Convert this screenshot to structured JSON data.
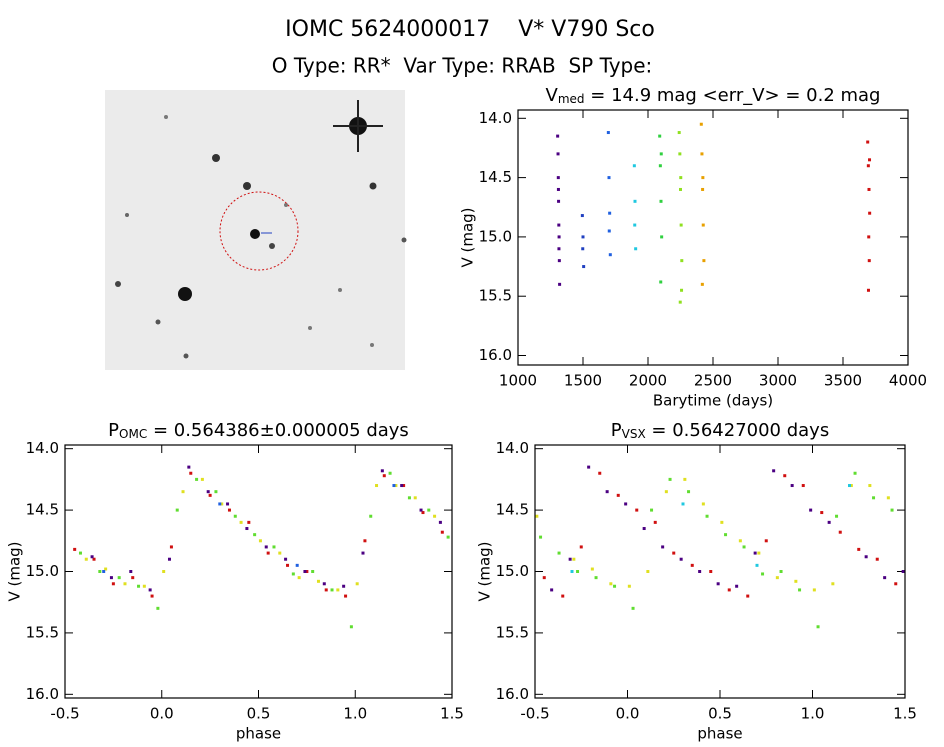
{
  "header": {
    "line1": "IOMC 5624000017    V* V790 Sco",
    "line2": "O Type: RR*  Var Type: RRAB  SP Type:"
  },
  "chart_data": [
    {
      "type": "scatter",
      "title": [
        "V",
        "med",
        " = 14.9 mag <err_V> = 0.2 mag"
      ],
      "x_label": "Barytime (days)",
      "y_label": "V (mag)",
      "xlim": [
        1000,
        4000
      ],
      "xticks": [
        1000,
        1500,
        2000,
        2500,
        3000,
        3500,
        4000
      ],
      "ylim": [
        13.93,
        16.08
      ],
      "y_inverted": true,
      "yticks": [
        {
          "value": 14,
          "label": "14.0"
        },
        14.5,
        {
          "value": 15,
          "label": "15.0"
        },
        15.5,
        {
          "value": 16,
          "label": "16.0"
        }
      ],
      "series": [
        {
          "color": "#4b0082",
          "x": [
            1305,
            1308,
            1310,
            1312,
            1314,
            1316,
            1318,
            1320,
            1311,
            1315
          ],
          "values": [
            14.15,
            14.3,
            14.5,
            14.7,
            14.9,
            15.0,
            15.2,
            15.4,
            14.6,
            15.1
          ]
        },
        {
          "color": "#2040c0",
          "x": [
            1495,
            1500,
            1505,
            1498
          ],
          "values": [
            14.82,
            15.0,
            15.25,
            15.1
          ]
        },
        {
          "color": "#2060e0",
          "x": [
            1695,
            1700,
            1705,
            1710,
            1702
          ],
          "values": [
            14.12,
            14.5,
            14.8,
            15.15,
            14.95
          ]
        },
        {
          "color": "#20c8e0",
          "x": [
            1895,
            1900,
            1905,
            1898
          ],
          "values": [
            14.4,
            14.7,
            15.1,
            14.9
          ]
        },
        {
          "color": "#30d040",
          "x": [
            2090,
            2095,
            2100,
            2105,
            2098,
            2102
          ],
          "values": [
            14.15,
            14.4,
            14.7,
            15.0,
            15.38,
            14.3
          ]
        },
        {
          "color": "#90e020",
          "x": [
            2240,
            2245,
            2250,
            2255,
            2260,
            2248,
            2252,
            2258
          ],
          "values": [
            14.12,
            14.3,
            14.6,
            14.9,
            15.2,
            15.55,
            14.5,
            15.45
          ]
        },
        {
          "color": "#e8a000",
          "x": [
            2410,
            2415,
            2420,
            2425,
            2430,
            2418,
            2422
          ],
          "values": [
            14.05,
            14.3,
            14.6,
            14.9,
            15.2,
            15.4,
            14.5
          ]
        },
        {
          "color": "#d01010",
          "x": [
            3690,
            3695,
            3700,
            3705,
            3698,
            3702,
            3696,
            3704
          ],
          "values": [
            14.2,
            14.4,
            14.6,
            14.8,
            15.0,
            15.2,
            15.45,
            14.35
          ]
        }
      ]
    },
    {
      "type": "scatter",
      "title": [
        "P",
        "OMC",
        " = 0.564386±0.000005 days"
      ],
      "x_label": "phase",
      "y_label": "V (mag)",
      "xlim": [
        -0.5,
        1.5
      ],
      "xticks": [
        -0.5,
        {
          "value": 0,
          "label": "0.0"
        },
        0.5,
        {
          "value": 1,
          "label": "1.0"
        },
        1.5
      ],
      "ylim": [
        13.97,
        16.03
      ],
      "y_inverted": true,
      "yticks": [
        {
          "value": 14,
          "label": "14.0"
        },
        14.5,
        {
          "value": 15,
          "label": "15.0"
        },
        15.5,
        {
          "value": 16,
          "label": "16.0"
        }
      ],
      "series": [
        {
          "color": "#d01010",
          "x": [
            -0.45,
            -0.35,
            -0.25,
            -0.15,
            -0.05,
            0.05,
            0.15,
            0.25,
            0.35,
            0.45,
            0.55,
            0.65,
            0.75,
            0.85,
            0.95,
            1.05,
            1.15,
            1.25,
            1.35,
            1.45
          ],
          "values": [
            14.82,
            14.9,
            15.1,
            15.05,
            15.2,
            14.8,
            14.2,
            14.38,
            14.5,
            14.6,
            14.85,
            14.95,
            15.0,
            15.15,
            15.2,
            14.75,
            14.22,
            14.3,
            14.52,
            14.68
          ]
        },
        {
          "color": "#60dd30",
          "x": [
            -0.42,
            -0.32,
            -0.22,
            -0.12,
            -0.02,
            0.08,
            0.18,
            0.28,
            0.38,
            0.48,
            0.58,
            0.68,
            0.78,
            0.88,
            0.98,
            1.08,
            1.18,
            1.28,
            1.38,
            1.48
          ],
          "values": [
            14.85,
            15.0,
            15.05,
            15.12,
            15.3,
            14.5,
            14.25,
            14.35,
            14.55,
            14.7,
            14.8,
            15.02,
            15.0,
            15.15,
            15.45,
            14.55,
            14.2,
            14.4,
            14.5,
            14.72
          ]
        },
        {
          "color": "#e0e020",
          "x": [
            -0.39,
            -0.29,
            -0.19,
            -0.09,
            0.01,
            0.11,
            0.21,
            0.31,
            0.41,
            0.51,
            0.61,
            0.71,
            0.81,
            0.91,
            1.01,
            1.11,
            1.21,
            1.31,
            1.41
          ],
          "values": [
            14.9,
            14.98,
            15.1,
            15.12,
            15.0,
            14.35,
            14.25,
            14.45,
            14.6,
            14.75,
            14.85,
            15.05,
            15.08,
            15.15,
            15.1,
            14.3,
            14.3,
            14.4,
            14.55
          ]
        },
        {
          "color": "#4b0082",
          "x": [
            -0.36,
            -0.26,
            -0.16,
            -0.06,
            0.04,
            0.14,
            0.24,
            0.34,
            0.44,
            0.54,
            0.64,
            0.74,
            0.84,
            0.94,
            1.04,
            1.14,
            1.24,
            1.34,
            1.44
          ],
          "values": [
            14.88,
            15.05,
            15.0,
            15.15,
            14.9,
            14.15,
            14.35,
            14.45,
            14.65,
            14.8,
            14.9,
            15.0,
            15.1,
            15.12,
            14.85,
            14.18,
            14.3,
            14.5,
            14.6
          ]
        },
        {
          "color": "#2060e0",
          "x": [
            -0.3,
            0.3,
            0.7,
            1.2
          ],
          "values": [
            15.0,
            14.45,
            14.95,
            14.3
          ]
        }
      ]
    },
    {
      "type": "scatter",
      "title": [
        "P",
        "VSX",
        " = 0.56427000 days"
      ],
      "x_label": "phase",
      "y_label": "V (mag)",
      "xlim": [
        -0.5,
        1.5
      ],
      "xticks": [
        -0.5,
        {
          "value": 0,
          "label": "0.0"
        },
        0.5,
        {
          "value": 1,
          "label": "1.0"
        },
        1.5
      ],
      "ylim": [
        13.97,
        16.03
      ],
      "y_inverted": true,
      "yticks": [
        {
          "value": 14,
          "label": "14.0"
        },
        14.5,
        {
          "value": 15,
          "label": "15.0"
        },
        15.5,
        {
          "value": 16,
          "label": "16.0"
        }
      ],
      "series": [
        {
          "color": "#d01010",
          "x": [
            1.25,
            1.35,
            1.45,
            -0.45,
            -0.35,
            -0.25,
            -0.15,
            -0.05,
            0.05,
            0.15,
            0.25,
            0.35,
            0.45,
            0.55,
            0.65,
            0.75,
            0.85,
            0.95,
            1.05,
            1.15
          ],
          "values": [
            14.82,
            14.9,
            15.1,
            15.05,
            15.2,
            14.8,
            14.2,
            14.38,
            14.5,
            14.6,
            14.85,
            14.95,
            15.0,
            15.15,
            15.2,
            14.75,
            14.22,
            14.3,
            14.52,
            14.68
          ]
        },
        {
          "color": "#60dd30",
          "x": [
            -0.37,
            -0.27,
            -0.17,
            -0.07,
            0.03,
            0.13,
            0.23,
            0.33,
            0.43,
            0.53,
            0.63,
            0.73,
            0.83,
            0.93,
            1.03,
            1.13,
            1.23,
            1.33,
            1.43,
            -0.47
          ],
          "values": [
            14.85,
            15.0,
            15.05,
            15.12,
            15.3,
            14.5,
            14.25,
            14.35,
            14.55,
            14.7,
            14.8,
            15.02,
            15.0,
            15.15,
            15.45,
            14.55,
            14.2,
            14.4,
            14.5,
            14.72
          ]
        },
        {
          "color": "#e0e020",
          "x": [
            -0.29,
            -0.19,
            -0.09,
            0.01,
            0.11,
            0.21,
            0.31,
            0.41,
            0.51,
            0.61,
            0.71,
            0.81,
            0.91,
            1.01,
            1.11,
            1.21,
            1.31,
            1.41,
            -0.49
          ],
          "values": [
            14.9,
            14.98,
            15.1,
            15.12,
            15.0,
            14.35,
            14.25,
            14.45,
            14.6,
            14.75,
            14.85,
            15.05,
            15.08,
            15.15,
            15.1,
            14.3,
            14.3,
            14.4,
            14.55
          ]
        },
        {
          "color": "#4b0082",
          "x": [
            1.29,
            1.39,
            1.49,
            -0.41,
            -0.31,
            -0.21,
            -0.11,
            -0.01,
            0.09,
            0.19,
            0.29,
            0.39,
            0.49,
            0.59,
            0.69,
            0.79,
            0.89,
            0.99,
            1.09
          ],
          "values": [
            14.88,
            15.05,
            15.0,
            15.15,
            14.9,
            14.15,
            14.35,
            14.45,
            14.65,
            14.8,
            14.9,
            15.0,
            15.1,
            15.12,
            14.85,
            14.18,
            14.3,
            14.5,
            14.6
          ]
        },
        {
          "color": "#20c8e0",
          "x": [
            -0.3,
            0.3,
            0.7,
            1.2
          ],
          "values": [
            15.0,
            14.45,
            14.95,
            14.3
          ]
        }
      ]
    }
  ]
}
